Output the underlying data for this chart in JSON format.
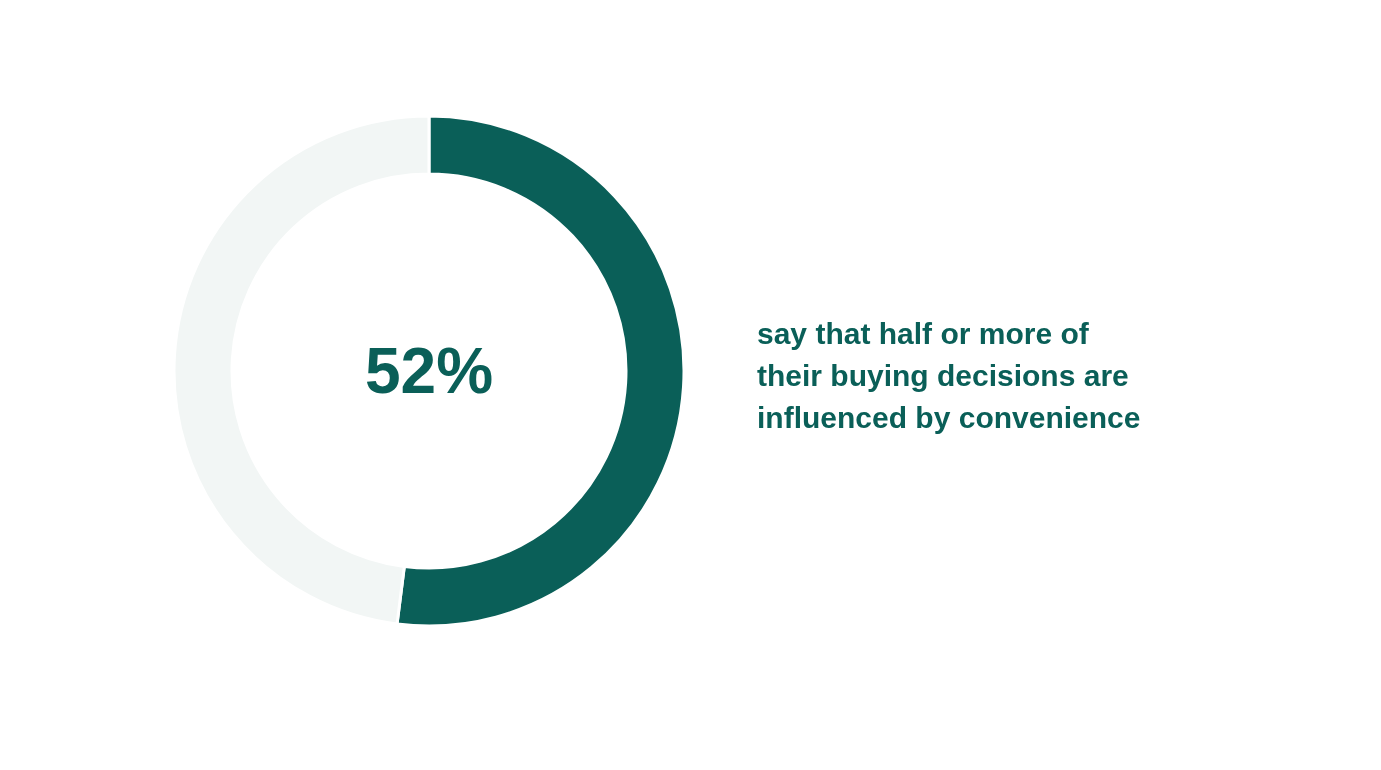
{
  "chart_data": {
    "type": "donut",
    "categories": [
      null,
      null
    ],
    "values": [
      52,
      48
    ],
    "colors": [
      "#0a5f58",
      "#f2f6f5"
    ],
    "value_labels": [
      "52%",
      null
    ],
    "annotations": [
      "say that half or more of their buying decisions are influenced by convenience"
    ]
  }
}
